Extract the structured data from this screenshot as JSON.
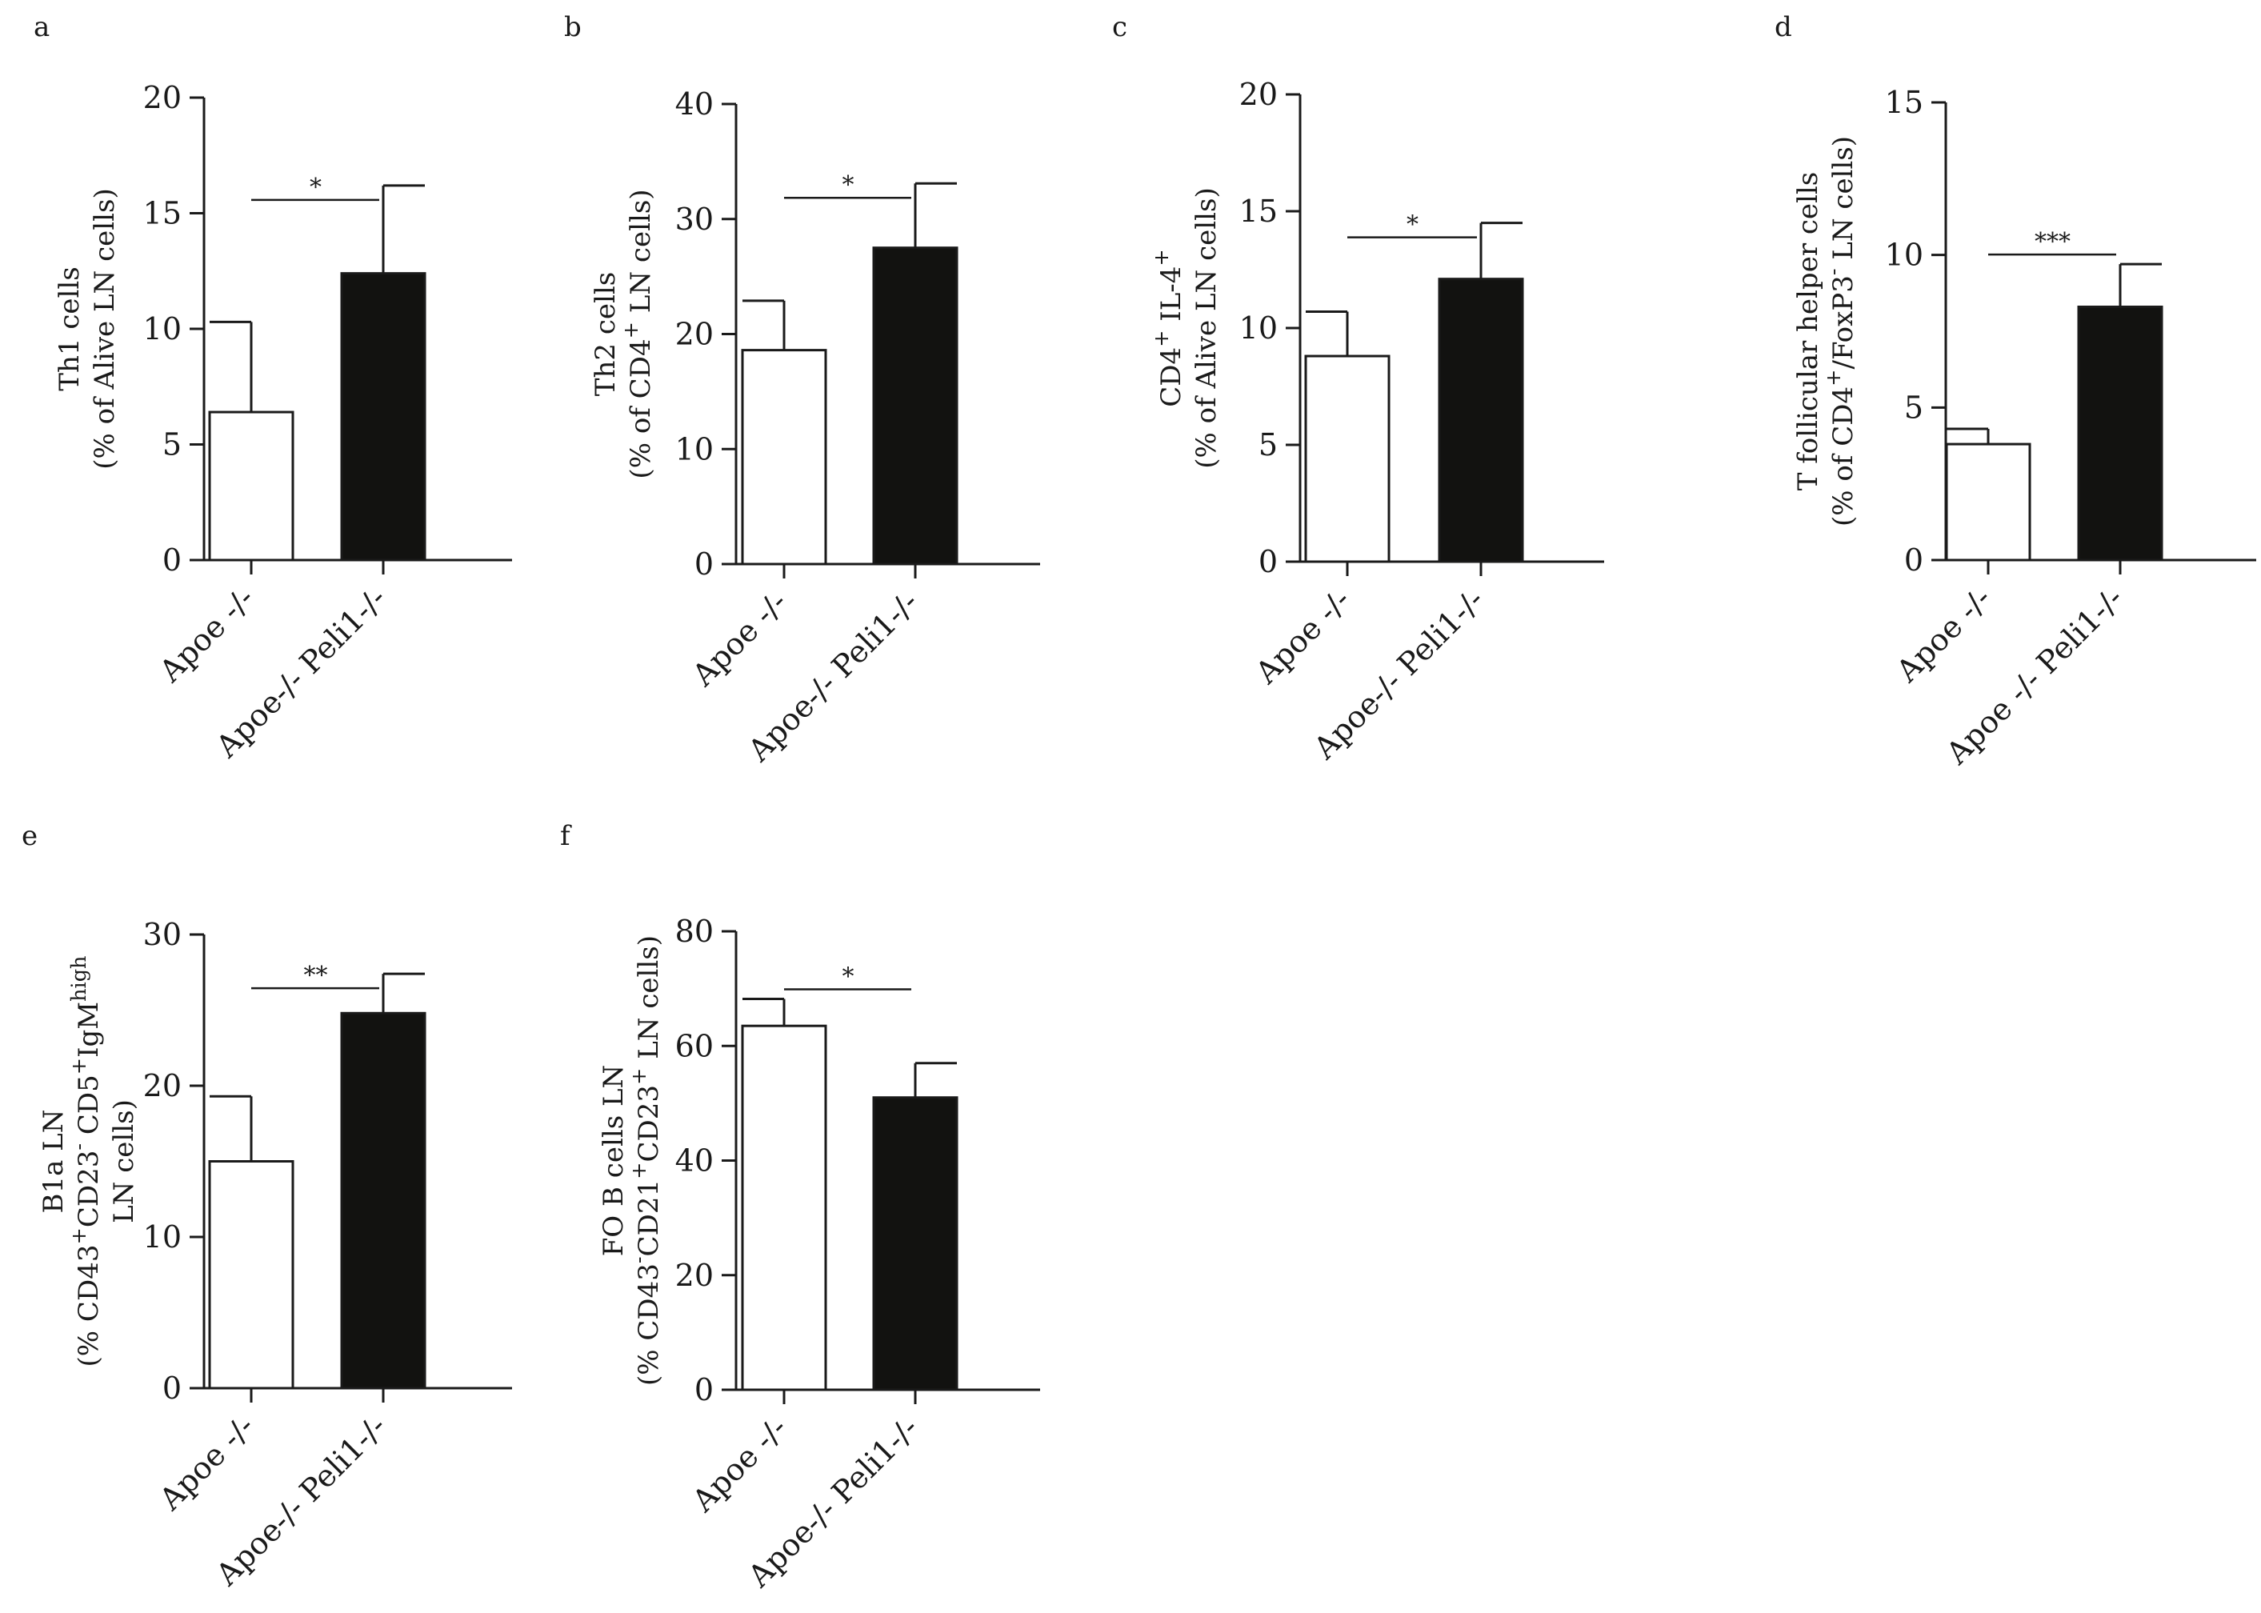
{
  "figure": {
    "bar_colors": {
      "control": "#ffffff",
      "knockout": "#121210"
    }
  },
  "chart_data": [
    {
      "panel": "a",
      "type": "bar",
      "categories": [
        "Apoe -/-",
        "Apoe-/- Peli1-/-"
      ],
      "values": [
        6.4,
        12.4
      ],
      "errors": [
        3.9,
        3.8
      ],
      "ylim": [
        0,
        20
      ],
      "yticks": [
        0,
        5,
        10,
        15,
        20
      ],
      "ylabel_lines": [
        "Th1 cells",
        "(% of Alive LN cells)"
      ],
      "significance": "*"
    },
    {
      "panel": "b",
      "type": "bar",
      "categories": [
        "Apoe -/-",
        "Apoe-/- Peli1-/-"
      ],
      "values": [
        18.6,
        27.5
      ],
      "errors": [
        4.3,
        5.6
      ],
      "ylim": [
        0,
        40
      ],
      "yticks": [
        0,
        10,
        20,
        30,
        40
      ],
      "ylabel_lines": [
        "Th2 cells",
        "(% of CD4+ LN cells)"
      ],
      "significance": "*"
    },
    {
      "panel": "c",
      "type": "bar",
      "categories": [
        "Apoe -/-",
        "Apoe-/- Peli1-/-"
      ],
      "values": [
        8.8,
        12.1
      ],
      "errors": [
        1.9,
        2.4
      ],
      "ylim": [
        0,
        20
      ],
      "yticks": [
        0,
        5,
        10,
        15,
        20
      ],
      "ylabel_lines": [
        "CD4+ IL-4+",
        "(% of Alive LN cells)"
      ],
      "significance": "*"
    },
    {
      "panel": "d",
      "type": "bar",
      "categories": [
        "Apoe -/-",
        "Apoe -/- Peli1-/-"
      ],
      "values": [
        3.8,
        8.3
      ],
      "errors": [
        0.5,
        1.4
      ],
      "ylim": [
        0,
        15
      ],
      "yticks": [
        0,
        5,
        10,
        15
      ],
      "ylabel_lines": [
        "T follicular helper cells",
        "(% of CD4+/FoxP3- LN cells)"
      ],
      "significance": "***"
    },
    {
      "panel": "e",
      "type": "bar",
      "categories": [
        "Apoe -/-",
        "Apoe-/- Peli1-/-"
      ],
      "values": [
        15.0,
        24.8
      ],
      "errors": [
        4.3,
        2.6
      ],
      "ylim": [
        0,
        30
      ],
      "yticks": [
        0,
        10,
        20,
        30
      ],
      "ylabel_lines": [
        "B1a LN",
        "(% CD43+CD23- CD5+IgMhigh",
        "LN cells)"
      ],
      "significance": "**"
    },
    {
      "panel": "f",
      "type": "bar",
      "categories": [
        "Apoe -/-",
        "Apoe-/- Peli1-/-"
      ],
      "values": [
        63.5,
        51.0
      ],
      "errors": [
        4.7,
        6.0
      ],
      "ylim": [
        0,
        80
      ],
      "yticks": [
        0,
        20,
        40,
        60,
        80
      ],
      "ylabel_lines": [
        "FO B cells LN",
        "(% CD43-CD21+CD23+ LN cells)"
      ],
      "significance": "*"
    }
  ]
}
